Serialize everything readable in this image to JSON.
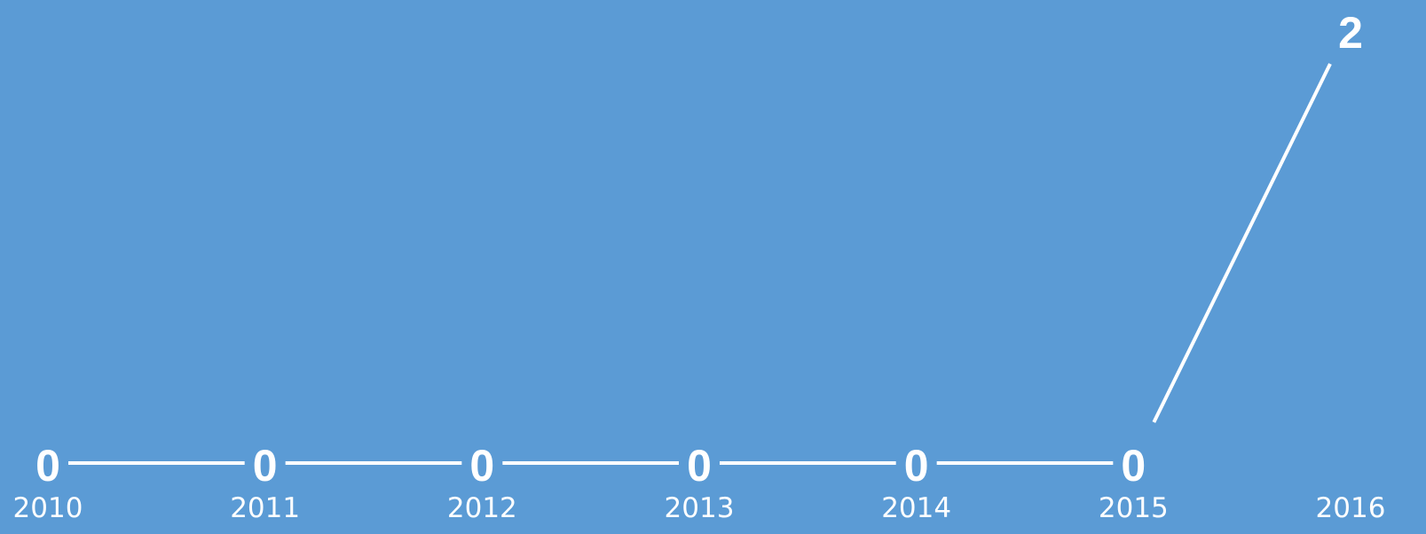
{
  "background_color": "#5b9bd5",
  "line_color": "#ffffff",
  "chart_data": {
    "type": "line",
    "categories": [
      "2010",
      "2011",
      "2012",
      "2013",
      "2014",
      "2015",
      "2016"
    ],
    "series": [
      {
        "values": [
          0,
          0,
          0,
          0,
          0,
          0,
          2
        ]
      }
    ],
    "data_labels": [
      "0",
      "0",
      "0",
      "0",
      "0",
      "0",
      "2"
    ],
    "title": "",
    "xlabel": "",
    "ylabel": "",
    "ylim": [
      0,
      2
    ],
    "grid": false,
    "legend": "none"
  }
}
